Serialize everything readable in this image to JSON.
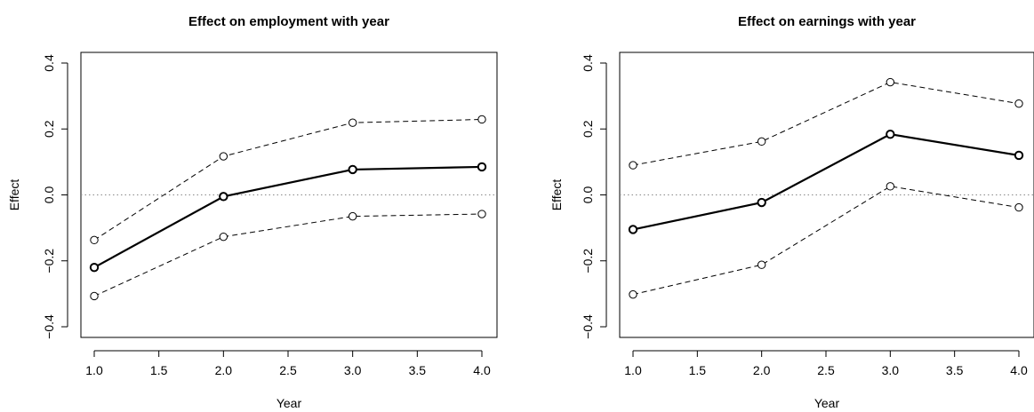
{
  "chart_data": [
    {
      "type": "line",
      "title": "Effect on employment with year",
      "xlabel": "Year",
      "ylabel": "Effect",
      "xlim": [
        1.0,
        4.0
      ],
      "ylim": [
        -0.4,
        0.4
      ],
      "xticks": [
        "1.0",
        "1.5",
        "2.0",
        "2.5",
        "3.0",
        "3.5",
        "4.0"
      ],
      "yticks": [
        "-0.4",
        "-0.2",
        "0.0",
        "0.2",
        "0.4"
      ],
      "reference_line": 0.0,
      "grid": false,
      "x": [
        1,
        2,
        3,
        4
      ],
      "series": [
        {
          "style": "solid-bold",
          "values": [
            -0.22,
            -0.005,
            0.077,
            0.085
          ]
        },
        {
          "style": "dashed",
          "values": [
            -0.137,
            0.117,
            0.219,
            0.229
          ]
        },
        {
          "style": "dashed",
          "values": [
            -0.307,
            -0.127,
            -0.065,
            -0.058
          ]
        }
      ]
    },
    {
      "type": "line",
      "title": "Effect on earnings with year",
      "xlabel": "Year",
      "ylabel": "Effect",
      "xlim": [
        1.0,
        4.0
      ],
      "ylim": [
        -0.4,
        0.4
      ],
      "xticks": [
        "1.0",
        "1.5",
        "2.0",
        "2.5",
        "3.0",
        "3.5",
        "4.0"
      ],
      "yticks": [
        "-0.4",
        "-0.2",
        "0.0",
        "0.2",
        "0.4"
      ],
      "reference_line": 0.0,
      "grid": false,
      "x": [
        1,
        2,
        3,
        4
      ],
      "series": [
        {
          "style": "solid-bold",
          "values": [
            -0.105,
            -0.023,
            0.184,
            0.12
          ]
        },
        {
          "style": "dashed",
          "values": [
            0.09,
            0.162,
            0.342,
            0.277
          ]
        },
        {
          "style": "dashed",
          "values": [
            -0.302,
            -0.212,
            0.026,
            -0.038
          ]
        }
      ]
    }
  ]
}
